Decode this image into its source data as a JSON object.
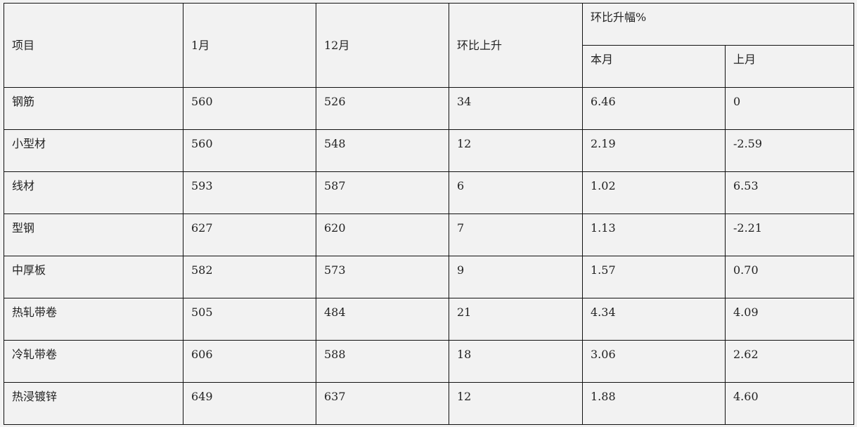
{
  "header": {
    "item": "项目",
    "jan": "1月",
    "dec": "12月",
    "mom_rise": "环比上升",
    "mom_pct": "环比升幅%",
    "this_month": "本月",
    "last_month": "上月"
  },
  "rows": [
    {
      "item": "钢筋",
      "jan": "560",
      "dec": "526",
      "rise": "34",
      "this_month": "6.46",
      "last_month": "0"
    },
    {
      "item": "小型材",
      "jan": "560",
      "dec": "548",
      "rise": "12",
      "this_month": "2.19",
      "last_month": "-2.59"
    },
    {
      "item": "线材",
      "jan": "593",
      "dec": "587",
      "rise": "6",
      "this_month": "1.02",
      "last_month": "6.53"
    },
    {
      "item": "型钢",
      "jan": "627",
      "dec": "620",
      "rise": "7",
      "this_month": "1.13",
      "last_month": "-2.21"
    },
    {
      "item": "中厚板",
      "jan": "582",
      "dec": "573",
      "rise": "9",
      "this_month": "1.57",
      "last_month": "0.70"
    },
    {
      "item": "热轧带卷",
      "jan": "505",
      "dec": "484",
      "rise": "21",
      "this_month": "4.34",
      "last_month": "4.09"
    },
    {
      "item": "冷轧带卷",
      "jan": "606",
      "dec": "588",
      "rise": "18",
      "this_month": "3.06",
      "last_month": "2.62"
    },
    {
      "item": "热浸镀锌",
      "jan": "649",
      "dec": "637",
      "rise": "12",
      "this_month": "1.88",
      "last_month": "4.60"
    }
  ]
}
